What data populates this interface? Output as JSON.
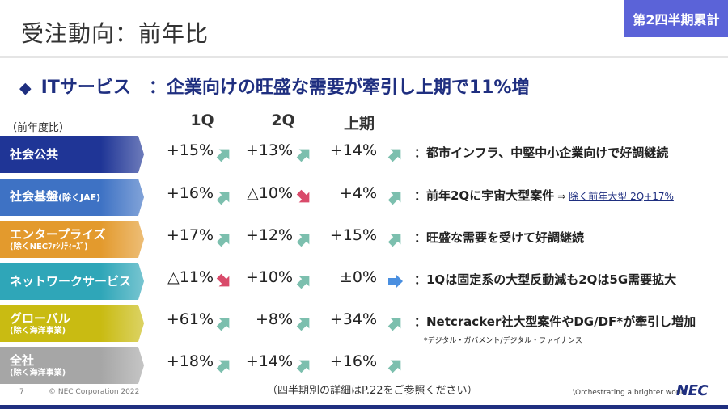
{
  "title": "受注動向：前年比",
  "badge": "第2四半期累計",
  "headline": {
    "bullet": "◆",
    "text": "ITサービス　：企業向けの旺盛な需要が牽引し上期で11%増"
  },
  "yoy_label": "（前年度比）",
  "columns": [
    "1Q",
    "2Q",
    "上期"
  ],
  "colors": {
    "navy": "#1f2f80",
    "arrow_up": "#7cbfae",
    "arrow_down": "#d94a6a",
    "arrow_flat": "#4a8fe0",
    "badge": "#5b63d8"
  },
  "rows": [
    {
      "label": "社会公共",
      "label_small": "",
      "sub": "",
      "color": "#1f3596",
      "q1": "+15%",
      "q1_dir": "up",
      "q2": "+13%",
      "q2_dir": "up",
      "h1": "+14%",
      "h1_dir": "up",
      "comment": "：都市インフラ、中堅中小企業向けで好調継続"
    },
    {
      "label": "社会基盤",
      "label_small": "(除くJAE)",
      "sub": "",
      "color": "#3e72c4",
      "q1": "+16%",
      "q1_dir": "up",
      "q2": "△10%",
      "q2_dir": "down",
      "h1": "+4%",
      "h1_dir": "up",
      "comment": "：前年2Qに宇宙大型案件",
      "comment_arrow": "⇒",
      "comment_link": "除く前年大型 2Q+17%"
    },
    {
      "label": "エンタープライズ",
      "label_small": "",
      "sub": "(除くNECﾌｧｼﾘﾃｨｰｽﾞ)",
      "color": "#e39a2d",
      "q1": "+17%",
      "q1_dir": "up",
      "q2": "+12%",
      "q2_dir": "up",
      "h1": "+15%",
      "h1_dir": "up",
      "comment": "：旺盛な需要を受けて好調継続"
    },
    {
      "label": "ネットワークサービス",
      "label_small": "",
      "sub": "",
      "color": "#2fa6b8",
      "q1": "△11%",
      "q1_dir": "down",
      "q2": "+10%",
      "q2_dir": "up",
      "h1": "±0%",
      "h1_dir": "flat",
      "comment": "：1Qは固定系の大型反動減も2Qは5G需要拡大"
    },
    {
      "label": "グローバル",
      "label_small": "",
      "sub": "(除く海洋事業)",
      "color": "#c9bb12",
      "q1": "+61%",
      "q1_dir": "up",
      "q2": "+8%",
      "q2_dir": "up",
      "h1": "+34%",
      "h1_dir": "up",
      "comment": "：Netcracker社大型案件やDG/DF*が牽引し増加",
      "footnote": "*デジタル・ガバメント/デジタル・ファイナンス"
    },
    {
      "label": "全社",
      "label_small": "",
      "sub": "(除く海洋事業)",
      "color": "#a6a6a6",
      "q1": "+18%",
      "q1_dir": "up",
      "q2": "+14%",
      "q2_dir": "up",
      "h1": "+16%",
      "h1_dir": "up",
      "comment": ""
    }
  ],
  "reference_note": "（四半期別の詳細はP.22をご参照ください）",
  "page_number": "7",
  "copyright": "© NEC Corporation 2022",
  "slogan": "\\Orchestrating a brighter world",
  "logo": "NEC"
}
